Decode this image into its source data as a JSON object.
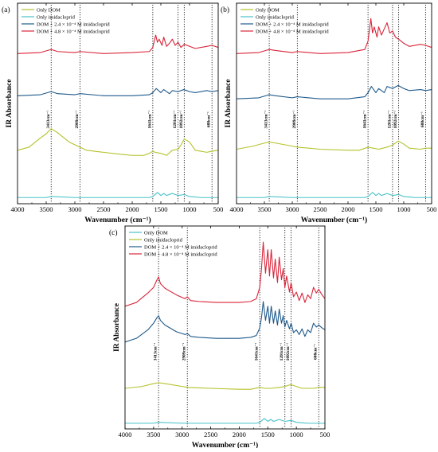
{
  "chart_data": [
    {
      "panel": "(a)",
      "type": "line",
      "xlabel": "Wavenumber (cm⁻¹)",
      "ylabel": "IR Absorbance",
      "xlim": [
        4000,
        500
      ],
      "x_reversed": true,
      "xticks": [
        4000,
        3500,
        3000,
        2500,
        2000,
        1500,
        1000,
        500
      ],
      "legend_position": "top-left",
      "legend": [
        "Only DOM",
        "Only imidacloprid",
        "DOM + 2.4 × 10⁻⁴ M imidacloprid",
        "DOM + 4.8 × 10⁻⁴ M imidacloprid"
      ],
      "legend_colors": [
        "#b5c22a",
        "#49c2c8",
        "#1f5a8c",
        "#d9253a"
      ],
      "reference_lines": [
        3413,
        2909,
        1641,
        1201,
        1092,
        608
      ],
      "annotations": [
        "3413cm⁻¹",
        "2909cm⁻¹",
        "1641cm⁻¹",
        "1201cm⁻¹",
        "1092cm⁻¹",
        "608cm⁻¹"
      ],
      "series": [
        {
          "name": "Only DOM",
          "color": "#b5c22a",
          "x": [
            4000,
            3800,
            3600,
            3500,
            3413,
            3300,
            3100,
            2950,
            2909,
            2800,
            2500,
            2200,
            2000,
            1800,
            1700,
            1641,
            1600,
            1500,
            1400,
            1300,
            1201,
            1150,
            1092,
            1000,
            900,
            700,
            608,
            500
          ],
          "y": [
            0.52,
            0.55,
            0.64,
            0.68,
            0.73,
            0.69,
            0.6,
            0.56,
            0.55,
            0.52,
            0.5,
            0.48,
            0.47,
            0.47,
            0.49,
            0.51,
            0.5,
            0.49,
            0.47,
            0.52,
            0.53,
            0.57,
            0.63,
            0.6,
            0.52,
            0.5,
            0.51,
            0.52
          ]
        },
        {
          "name": "Only imidacloprid",
          "color": "#49c2c8",
          "x": [
            4000,
            3500,
            3413,
            3000,
            2000,
            1700,
            1641,
            1560,
            1500,
            1450,
            1400,
            1300,
            1201,
            1092,
            1000,
            800,
            608,
            500
          ],
          "y": [
            0.06,
            0.06,
            0.07,
            0.06,
            0.06,
            0.06,
            0.07,
            0.11,
            0.08,
            0.1,
            0.08,
            0.1,
            0.08,
            0.09,
            0.07,
            0.06,
            0.06,
            0.06
          ]
        },
        {
          "name": "DOM + 2.4 × 10⁻⁴ M imidacloprid",
          "color": "#1f5a8c",
          "x": [
            4000,
            3600,
            3413,
            3300,
            3000,
            2909,
            2500,
            2000,
            1700,
            1641,
            1580,
            1500,
            1450,
            1350,
            1300,
            1201,
            1100,
            1000,
            900,
            700,
            608,
            500
          ],
          "y": [
            1.05,
            1.06,
            1.09,
            1.07,
            1.06,
            1.07,
            1.05,
            1.05,
            1.06,
            1.08,
            1.12,
            1.08,
            1.11,
            1.07,
            1.1,
            1.09,
            1.11,
            1.09,
            1.08,
            1.1,
            1.09,
            1.1
          ]
        },
        {
          "name": "DOM + 4.8 × 10⁻⁴ M imidacloprid",
          "color": "#d9253a",
          "x": [
            4000,
            3600,
            3413,
            3300,
            3000,
            2909,
            2500,
            2000,
            1700,
            1641,
            1590,
            1560,
            1530,
            1480,
            1450,
            1400,
            1350,
            1300,
            1250,
            1201,
            1150,
            1092,
            1000,
            900,
            700,
            608,
            500
          ],
          "y": [
            1.46,
            1.47,
            1.5,
            1.48,
            1.47,
            1.48,
            1.46,
            1.47,
            1.48,
            1.52,
            1.64,
            1.57,
            1.6,
            1.54,
            1.62,
            1.53,
            1.56,
            1.6,
            1.54,
            1.57,
            1.52,
            1.55,
            1.53,
            1.51,
            1.53,
            1.54,
            1.52
          ]
        }
      ]
    },
    {
      "panel": "(b)",
      "type": "line",
      "xlabel": "Wavenumber (cm⁻¹)",
      "ylabel": "IR Absorbance",
      "xlim": [
        4000,
        500
      ],
      "x_reversed": true,
      "xticks": [
        4000,
        3500,
        3000,
        2500,
        2000,
        1500,
        1000,
        500
      ],
      "legend_position": "top-left",
      "legend": [
        "Only DOM",
        "Only imidacloprid",
        "DOM + 2.4 × 10⁻⁴ M imidacloprid",
        "DOM + 4.8 × 10⁻⁴ M imidacloprid"
      ],
      "legend_colors": [
        "#b5c22a",
        "#49c2c8",
        "#1f5a8c",
        "#d9253a"
      ],
      "reference_lines": [
        3413,
        2909,
        1641,
        1201,
        1092,
        608
      ],
      "annotations": [
        "3413cm⁻¹",
        "2909cm⁻¹",
        "1641cm⁻¹",
        "1201cm⁻¹",
        "1092cm⁻¹",
        "608cm⁻¹"
      ],
      "series": [
        {
          "name": "Only DOM",
          "color": "#b5c22a",
          "x": [
            4000,
            3700,
            3500,
            3413,
            3300,
            3000,
            2909,
            2500,
            2000,
            1800,
            1641,
            1550,
            1450,
            1300,
            1201,
            1100,
            1000,
            900,
            700,
            608,
            500
          ],
          "y": [
            0.53,
            0.56,
            0.59,
            0.6,
            0.59,
            0.56,
            0.55,
            0.53,
            0.52,
            0.52,
            0.55,
            0.54,
            0.53,
            0.55,
            0.57,
            0.61,
            0.58,
            0.54,
            0.53,
            0.54,
            0.54
          ]
        },
        {
          "name": "Only imidacloprid",
          "color": "#49c2c8",
          "x": [
            4000,
            3500,
            3413,
            3000,
            2000,
            1700,
            1641,
            1560,
            1500,
            1450,
            1400,
            1300,
            1201,
            1092,
            1000,
            800,
            608,
            500
          ],
          "y": [
            0.06,
            0.06,
            0.07,
            0.06,
            0.06,
            0.06,
            0.07,
            0.11,
            0.08,
            0.1,
            0.08,
            0.1,
            0.08,
            0.09,
            0.07,
            0.06,
            0.06,
            0.06
          ]
        },
        {
          "name": "DOM + 2.4 × 10⁻⁴ M imidacloprid",
          "color": "#1f5a8c",
          "x": [
            4000,
            3600,
            3413,
            3300,
            3000,
            2909,
            2500,
            2000,
            1700,
            1641,
            1580,
            1500,
            1450,
            1350,
            1300,
            1201,
            1100,
            1000,
            900,
            700,
            608,
            500
          ],
          "y": [
            1.02,
            1.03,
            1.06,
            1.05,
            1.03,
            1.04,
            1.02,
            1.02,
            1.04,
            1.08,
            1.14,
            1.08,
            1.12,
            1.08,
            1.14,
            1.12,
            1.15,
            1.12,
            1.1,
            1.11,
            1.1,
            1.11
          ]
        },
        {
          "name": "DOM + 4.8 × 10⁻⁴ M imidacloprid",
          "color": "#d9253a",
          "x": [
            4000,
            3600,
            3413,
            3300,
            3000,
            2909,
            2500,
            2000,
            1700,
            1641,
            1590,
            1560,
            1530,
            1480,
            1450,
            1400,
            1350,
            1300,
            1250,
            1201,
            1150,
            1092,
            1000,
            900,
            700,
            608,
            500
          ],
          "y": [
            1.46,
            1.47,
            1.5,
            1.49,
            1.47,
            1.48,
            1.46,
            1.47,
            1.5,
            1.58,
            1.8,
            1.66,
            1.72,
            1.62,
            1.72,
            1.64,
            1.7,
            1.76,
            1.66,
            1.68,
            1.62,
            1.6,
            1.56,
            1.53,
            1.55,
            1.54,
            1.52
          ]
        }
      ]
    },
    {
      "panel": "(c)",
      "type": "line",
      "xlabel": "Wavenumber (cm⁻¹)",
      "ylabel": "IR Absorbance",
      "xlim": [
        4000,
        500
      ],
      "x_reversed": true,
      "xticks": [
        4000,
        3500,
        3000,
        2500,
        2000,
        1500,
        1000,
        500
      ],
      "legend_position": "top-left",
      "legend": [
        "Only DOM",
        "Only imidacloprid",
        "DOM + 2.4 × 10⁻⁴ M imidacloprid",
        "DOM + 4.8 × 10⁻⁴ M imidacloprid"
      ],
      "legend_colors": [
        "#49c2c8",
        "#b5c22a",
        "#1f5a8c",
        "#d9253a"
      ],
      "reference_lines": [
        3413,
        2909,
        1641,
        1201,
        1092,
        608
      ],
      "annotations": [
        "3413cm⁻¹",
        "2909cm⁻¹",
        "1641cm⁻¹",
        "1201cm⁻¹",
        "1092cm⁻¹",
        "608cm⁻¹"
      ],
      "series": [
        {
          "name": "Only DOM",
          "color": "#49c2c8",
          "x": [
            4000,
            3500,
            3413,
            3000,
            2000,
            1700,
            1641,
            1560,
            1500,
            1450,
            1400,
            1300,
            1201,
            1092,
            1000,
            800,
            608,
            500
          ],
          "y": [
            0.06,
            0.06,
            0.07,
            0.06,
            0.06,
            0.06,
            0.07,
            0.11,
            0.08,
            0.1,
            0.08,
            0.1,
            0.08,
            0.09,
            0.07,
            0.06,
            0.06,
            0.06
          ]
        },
        {
          "name": "Only imidacloprid",
          "color": "#b5c22a",
          "x": [
            4000,
            3700,
            3500,
            3413,
            3300,
            3000,
            2909,
            2500,
            2000,
            1800,
            1641,
            1550,
            1450,
            1300,
            1201,
            1100,
            1000,
            900,
            700,
            608,
            500
          ],
          "y": [
            0.43,
            0.45,
            0.48,
            0.49,
            0.48,
            0.45,
            0.44,
            0.43,
            0.42,
            0.42,
            0.44,
            0.43,
            0.43,
            0.44,
            0.45,
            0.47,
            0.45,
            0.43,
            0.43,
            0.44,
            0.44
          ]
        },
        {
          "name": "DOM + 2.4 × 10⁻⁴ M imidacloprid",
          "color": "#1f5a8c",
          "x": [
            4000,
            3800,
            3600,
            3500,
            3440,
            3413,
            3380,
            3300,
            3100,
            2950,
            2909,
            2850,
            2700,
            2400,
            2000,
            1800,
            1700,
            1641,
            1610,
            1580,
            1540,
            1500,
            1470,
            1440,
            1400,
            1370,
            1330,
            1300,
            1260,
            1230,
            1201,
            1170,
            1120,
            1092,
            1050,
            1000,
            950,
            900,
            850,
            800,
            750,
            700,
            650,
            608,
            550,
            500
          ],
          "y": [
            0.92,
            0.96,
            1.05,
            1.12,
            1.18,
            1.2,
            1.15,
            1.1,
            1.03,
            1.0,
            1.01,
            0.98,
            0.97,
            0.96,
            0.96,
            0.97,
            0.99,
            1.07,
            1.18,
            1.35,
            1.15,
            1.3,
            1.12,
            1.3,
            1.12,
            1.25,
            1.1,
            1.27,
            1.12,
            1.2,
            1.08,
            1.15,
            1.06,
            1.12,
            1.02,
            1.05,
            1.0,
            1.06,
            0.98,
            1.05,
            1.02,
            1.12,
            1.08,
            1.1,
            1.07,
            1.05
          ]
        },
        {
          "name": "DOM + 4.8 × 10⁻⁴ M imidacloprid",
          "color": "#d9253a",
          "x": [
            4000,
            3800,
            3600,
            3500,
            3440,
            3413,
            3380,
            3300,
            3100,
            2950,
            2909,
            2850,
            2700,
            2400,
            2000,
            1800,
            1700,
            1641,
            1610,
            1580,
            1540,
            1500,
            1470,
            1440,
            1400,
            1370,
            1330,
            1300,
            1260,
            1230,
            1201,
            1170,
            1120,
            1092,
            1050,
            1000,
            950,
            900,
            850,
            800,
            750,
            700,
            650,
            608,
            550,
            500
          ],
          "y": [
            1.3,
            1.34,
            1.44,
            1.5,
            1.58,
            1.61,
            1.54,
            1.49,
            1.42,
            1.38,
            1.4,
            1.36,
            1.35,
            1.34,
            1.34,
            1.35,
            1.38,
            1.5,
            1.7,
            1.98,
            1.65,
            1.9,
            1.62,
            1.9,
            1.6,
            1.8,
            1.55,
            1.82,
            1.58,
            1.7,
            1.5,
            1.62,
            1.45,
            1.55,
            1.4,
            1.45,
            1.36,
            1.44,
            1.34,
            1.42,
            1.38,
            1.5,
            1.44,
            1.48,
            1.42,
            1.38
          ]
        }
      ]
    }
  ]
}
